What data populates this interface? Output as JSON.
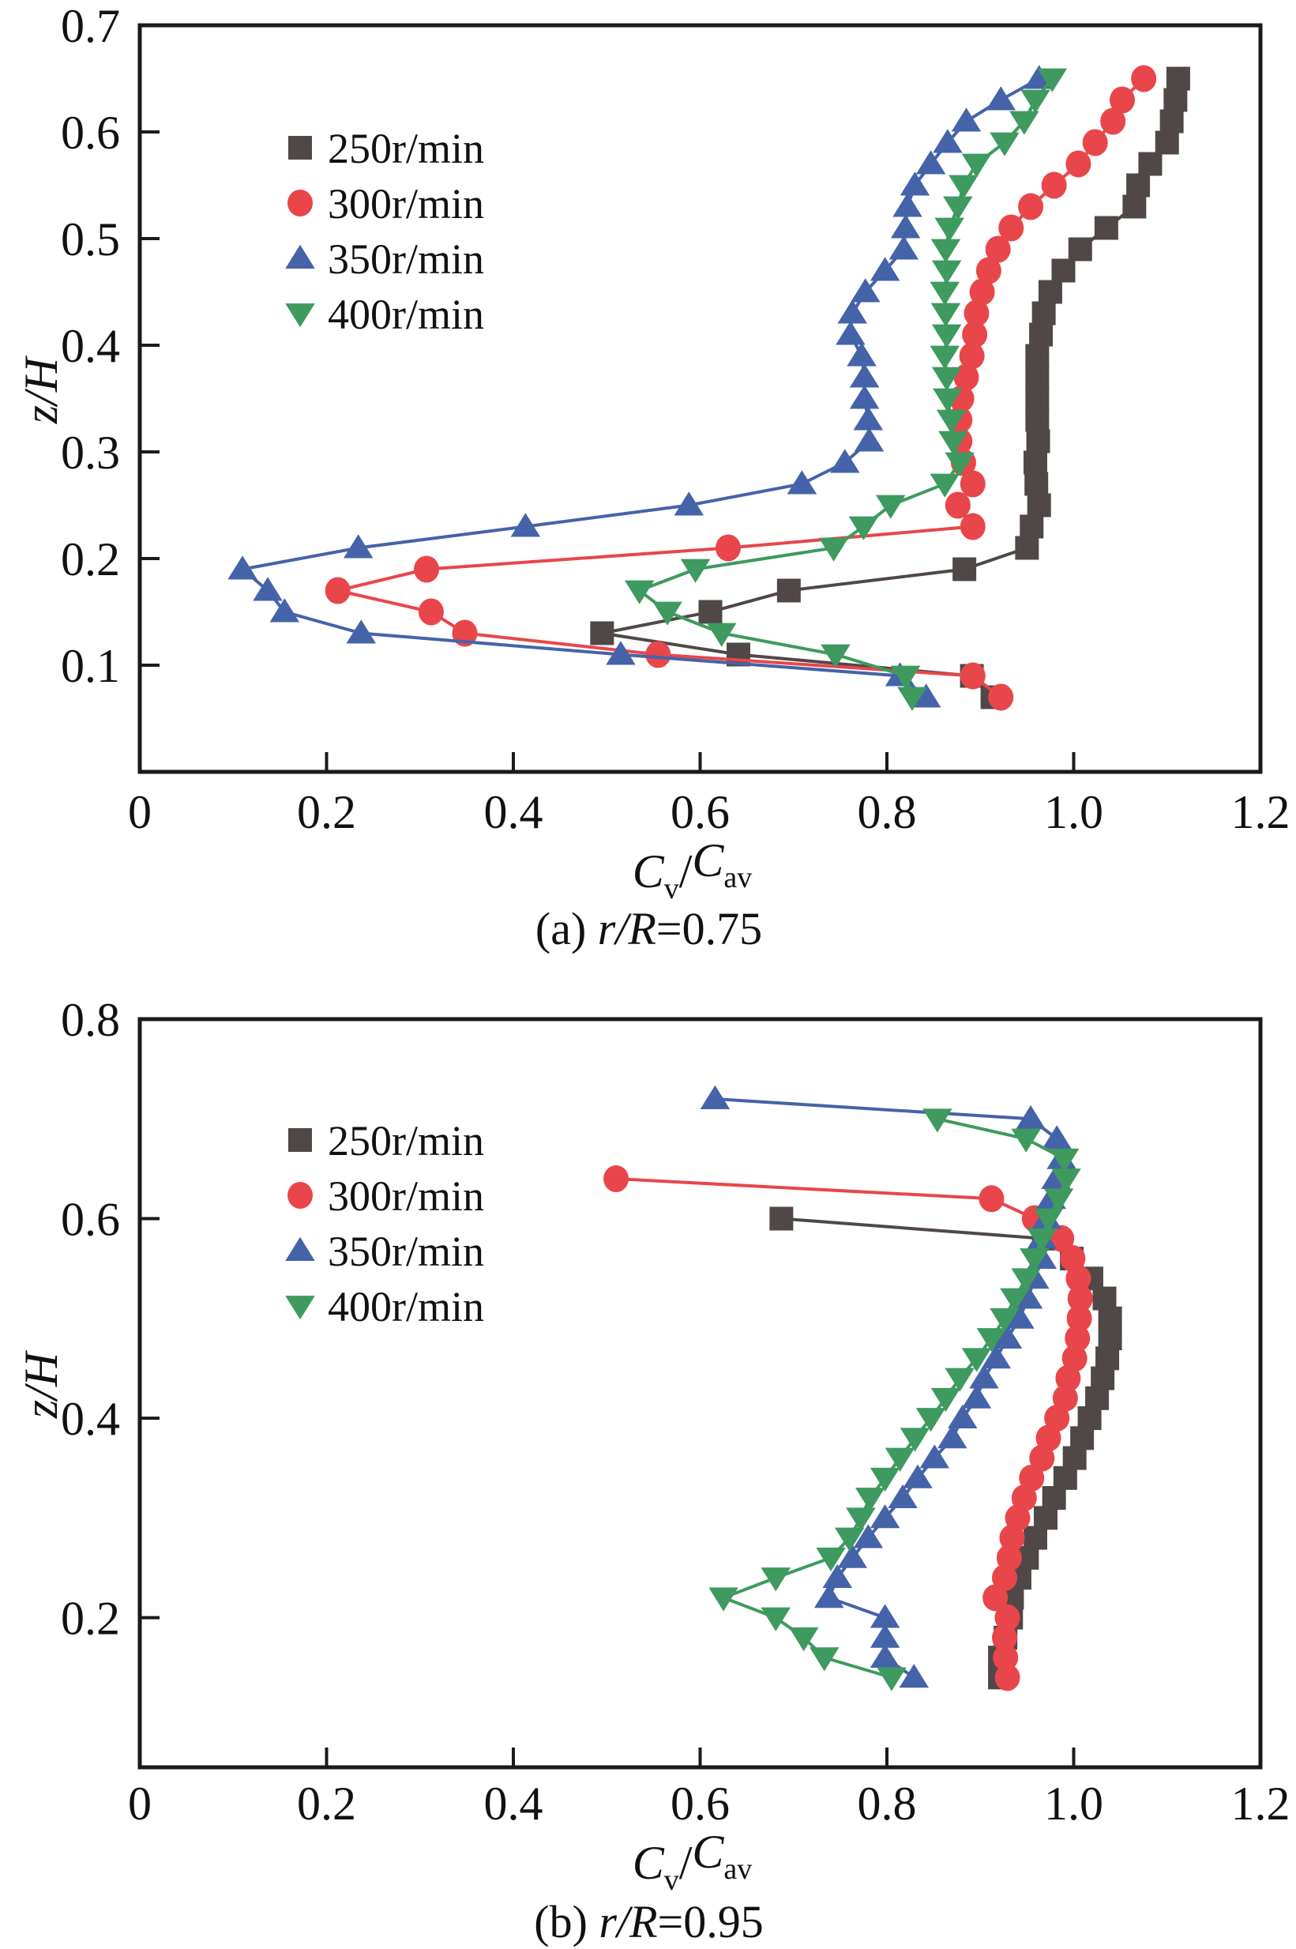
{
  "figure": {
    "panels": [
      "a",
      "b"
    ]
  },
  "chart_data": [
    {
      "type": "line",
      "panel_id": "a",
      "title": "",
      "caption": {
        "prefix": "(a) ",
        "var": "r/R",
        "suffix": "=0.75"
      },
      "xlabel": {
        "main": "C",
        "sub1": "v",
        "sep": "/",
        "main2": "C",
        "sub2": "av"
      },
      "ylabel": "z/H",
      "xlim": [
        0,
        1.2
      ],
      "ylim": [
        0,
        0.7
      ],
      "xticks": [
        0,
        0.2,
        0.4,
        0.6,
        0.8,
        1.0,
        1.2
      ],
      "xtick_labels": [
        "0",
        "0.2",
        "0.4",
        "0.6",
        "0.8",
        "1.0",
        "1.2"
      ],
      "yticks": [
        0.1,
        0.2,
        0.3,
        0.4,
        0.5,
        0.6,
        0.7
      ],
      "ytick_labels": [
        "0.1",
        "0.2",
        "0.3",
        "0.4",
        "0.5",
        "0.6",
        "0.7"
      ],
      "grid": false,
      "legend_position": "upper-left",
      "orientation": "x-value vs z/H (profile)",
      "z": [
        0.07,
        0.09,
        0.11,
        0.13,
        0.15,
        0.17,
        0.19,
        0.21,
        0.23,
        0.25,
        0.27,
        0.29,
        0.31,
        0.33,
        0.35,
        0.37,
        0.39,
        0.41,
        0.43,
        0.45,
        0.47,
        0.49,
        0.51,
        0.53,
        0.55,
        0.57,
        0.59,
        0.61,
        0.63,
        0.65
      ],
      "series": [
        {
          "name": "250r/min",
          "marker": "square",
          "color": "#504847",
          "values": [
            0.913,
            0.891,
            0.641,
            0.495,
            0.611,
            0.695,
            0.883,
            0.95,
            0.955,
            0.963,
            0.96,
            0.959,
            0.962,
            0.961,
            0.961,
            0.961,
            0.961,
            0.965,
            0.968,
            0.975,
            0.989,
            1.007,
            1.035,
            1.065,
            1.069,
            1.082,
            1.1,
            1.105,
            1.109,
            1.112
          ]
        },
        {
          "name": "300r/min",
          "marker": "circle",
          "color": "#E8464A",
          "values": [
            0.922,
            0.892,
            0.555,
            0.348,
            0.312,
            0.212,
            0.307,
            0.63,
            0.892,
            0.876,
            0.892,
            0.882,
            0.878,
            0.878,
            0.88,
            0.885,
            0.891,
            0.894,
            0.896,
            0.902,
            0.909,
            0.919,
            0.933,
            0.954,
            0.979,
            1.005,
            1.023,
            1.042,
            1.052,
            1.075
          ]
        },
        {
          "name": "350r/min",
          "marker": "triangle-up",
          "color": "#4563A8",
          "values": [
            0.842,
            0.814,
            0.515,
            0.237,
            0.155,
            0.137,
            0.11,
            0.234,
            0.413,
            0.588,
            0.709,
            0.755,
            0.781,
            0.78,
            0.776,
            0.776,
            0.773,
            0.761,
            0.763,
            0.777,
            0.798,
            0.818,
            0.82,
            0.822,
            0.83,
            0.847,
            0.865,
            0.885,
            0.922,
            0.963
          ]
        },
        {
          "name": "400r/min",
          "marker": "triangle-down",
          "color": "#3E9A5E",
          "values": [
            0.827,
            0.82,
            0.745,
            0.623,
            0.565,
            0.535,
            0.595,
            0.743,
            0.775,
            0.804,
            0.862,
            0.878,
            0.871,
            0.869,
            0.865,
            0.864,
            0.862,
            0.864,
            0.863,
            0.862,
            0.864,
            0.863,
            0.867,
            0.876,
            0.882,
            0.896,
            0.926,
            0.947,
            0.959,
            0.977
          ]
        }
      ]
    },
    {
      "type": "line",
      "panel_id": "b",
      "title": "",
      "caption": {
        "prefix": "(b) ",
        "var": "r/R",
        "suffix": "=0.95"
      },
      "xlabel": {
        "main": "C",
        "sub1": "v",
        "sep": "/",
        "main2": "C",
        "sub2": "av"
      },
      "ylabel": "z/H",
      "xlim": [
        0,
        1.2
      ],
      "ylim": [
        0.05,
        0.8
      ],
      "xticks": [
        0,
        0.2,
        0.4,
        0.6,
        0.8,
        1.0,
        1.2
      ],
      "xtick_labels": [
        "0",
        "0.2",
        "0.4",
        "0.6",
        "0.8",
        "1.0",
        "1.2"
      ],
      "yticks": [
        0.2,
        0.4,
        0.6,
        0.8
      ],
      "ytick_labels": [
        "0.2",
        "0.4",
        "0.6",
        "0.8"
      ],
      "grid": false,
      "legend_position": "upper-left",
      "orientation": "x-value vs z/H (profile)",
      "series": [
        {
          "name": "250r/min",
          "marker": "square",
          "color": "#504847",
          "z": [
            0.14,
            0.16,
            0.18,
            0.2,
            0.22,
            0.24,
            0.26,
            0.28,
            0.3,
            0.32,
            0.34,
            0.36,
            0.38,
            0.4,
            0.42,
            0.44,
            0.46,
            0.48,
            0.5,
            0.52,
            0.54,
            0.56,
            0.58,
            0.6
          ],
          "values": [
            0.921,
            0.921,
            0.927,
            0.933,
            0.934,
            0.942,
            0.95,
            0.959,
            0.97,
            0.979,
            0.991,
            1.001,
            1.009,
            1.017,
            1.025,
            1.031,
            1.036,
            1.039,
            1.039,
            1.033,
            1.019,
            0.998,
            0.968,
            0.687
          ]
        },
        {
          "name": "300r/min",
          "marker": "circle",
          "color": "#E8464A",
          "z": [
            0.14,
            0.16,
            0.18,
            0.2,
            0.22,
            0.24,
            0.26,
            0.28,
            0.3,
            0.32,
            0.34,
            0.36,
            0.38,
            0.4,
            0.42,
            0.44,
            0.46,
            0.48,
            0.5,
            0.52,
            0.54,
            0.56,
            0.58,
            0.6,
            0.62,
            0.64
          ],
          "values": [
            0.929,
            0.927,
            0.926,
            0.929,
            0.916,
            0.926,
            0.931,
            0.934,
            0.94,
            0.947,
            0.955,
            0.966,
            0.973,
            0.982,
            0.991,
            0.994,
            1.001,
            1.004,
            1.006,
            1.007,
            1.005,
            0.999,
            0.987,
            0.958,
            0.912,
            0.51
          ]
        },
        {
          "name": "350r/min",
          "marker": "triangle-up",
          "color": "#4563A8",
          "z": [
            0.14,
            0.16,
            0.18,
            0.2,
            0.22,
            0.24,
            0.26,
            0.28,
            0.3,
            0.32,
            0.34,
            0.36,
            0.38,
            0.4,
            0.42,
            0.44,
            0.46,
            0.48,
            0.5,
            0.52,
            0.54,
            0.56,
            0.58,
            0.6,
            0.62,
            0.64,
            0.66,
            0.68,
            0.7,
            0.72
          ],
          "values": [
            0.829,
            0.798,
            0.798,
            0.798,
            0.738,
            0.747,
            0.763,
            0.78,
            0.798,
            0.817,
            0.833,
            0.851,
            0.87,
            0.881,
            0.896,
            0.904,
            0.917,
            0.929,
            0.942,
            0.951,
            0.958,
            0.966,
            0.966,
            0.971,
            0.976,
            0.981,
            0.987,
            0.982,
            0.954,
            0.616
          ]
        },
        {
          "name": "400r/min",
          "marker": "triangle-down",
          "color": "#3E9A5E",
          "z": [
            0.14,
            0.16,
            0.18,
            0.2,
            0.22,
            0.24,
            0.26,
            0.28,
            0.3,
            0.32,
            0.34,
            0.36,
            0.38,
            0.4,
            0.42,
            0.44,
            0.46,
            0.48,
            0.5,
            0.52,
            0.54,
            0.56,
            0.58,
            0.6,
            0.62,
            0.64,
            0.66,
            0.68,
            0.7
          ],
          "values": [
            0.805,
            0.733,
            0.711,
            0.681,
            0.625,
            0.681,
            0.74,
            0.76,
            0.772,
            0.782,
            0.798,
            0.814,
            0.83,
            0.847,
            0.863,
            0.878,
            0.896,
            0.912,
            0.926,
            0.937,
            0.949,
            0.958,
            0.966,
            0.973,
            0.984,
            0.992,
            0.99,
            0.949,
            0.854
          ]
        }
      ]
    }
  ]
}
